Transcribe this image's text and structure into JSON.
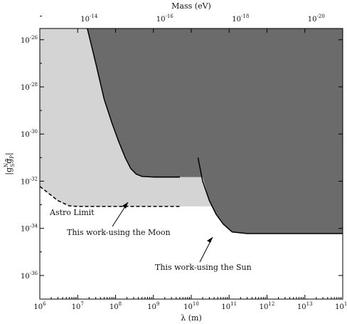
{
  "chart_data": {
    "type": "area",
    "x_axis": {
      "label": "λ (m)",
      "scale": "log",
      "range": [
        1000000,
        100000000000000
      ],
      "ticks": [
        {
          "value": 1000000,
          "base": "10",
          "exp": "6"
        },
        {
          "value": 10000000,
          "base": "10",
          "exp": "7"
        },
        {
          "value": 100000000,
          "base": "10",
          "exp": "8"
        },
        {
          "value": 1000000000,
          "base": "10",
          "exp": "9"
        },
        {
          "value": 10000000000,
          "base": "10",
          "exp": "10"
        },
        {
          "value": 100000000000,
          "base": "10",
          "exp": "11"
        },
        {
          "value": 1000000000000,
          "base": "10",
          "exp": "12"
        },
        {
          "value": 10000000000000,
          "base": "10",
          "exp": "13"
        },
        {
          "value": 100000000000000,
          "base": "10",
          "exp": "14"
        }
      ]
    },
    "top_axis": {
      "label": "Mass (eV)",
      "scale": "log",
      "ticks": [
        {
          "at_lambda_m": 20000000,
          "base": "10",
          "exp": "-14"
        },
        {
          "at_lambda_m": 2000000000,
          "base": "10",
          "exp": "-16"
        },
        {
          "at_lambda_m": 200000000000,
          "base": "10",
          "exp": "-18"
        },
        {
          "at_lambda_m": 20000000000000,
          "base": "10",
          "exp": "-20"
        }
      ]
    },
    "y_axis": {
      "label_base": "|g",
      "label_sup": "N,n",
      "label_sub": "S",
      "label_base2": "g",
      "label_sub2": "P",
      "label_end": "|",
      "scale": "log",
      "range": [
        1e-37,
        3e-26
      ],
      "ticks": [
        {
          "value": 1e-26,
          "base": "10",
          "exp": "-26"
        },
        {
          "value": 1e-28,
          "base": "10",
          "exp": "-28"
        },
        {
          "value": 1e-30,
          "base": "10",
          "exp": "-30"
        },
        {
          "value": 1e-32,
          "base": "10",
          "exp": "-32"
        },
        {
          "value": 1e-34,
          "base": "10",
          "exp": "-34"
        },
        {
          "value": 1e-36,
          "base": "10",
          "exp": "-36"
        }
      ]
    },
    "series": [
      {
        "name": "Astro Limit",
        "style": "dashed",
        "points": [
          [
            1000000,
            6e-33
          ],
          [
            3000000,
            1.5e-33
          ],
          [
            6000000,
            9e-34
          ],
          [
            10000000,
            8.5e-34
          ],
          [
            5000000000,
            8.5e-34
          ]
        ]
      },
      {
        "name": "This work-using the Moon",
        "style": "solid",
        "points": [
          [
            18000000,
            3e-26
          ],
          [
            30000000,
            1e-27
          ],
          [
            50000000,
            3e-29
          ],
          [
            80000000,
            3e-30
          ],
          [
            120000000,
            5e-31
          ],
          [
            180000000,
            1e-31
          ],
          [
            250000000,
            3.5e-32
          ],
          [
            350000000,
            2e-32
          ],
          [
            500000000,
            1.6e-32
          ],
          [
            1000000000,
            1.5e-32
          ],
          [
            5000000000,
            1.5e-32
          ]
        ]
      },
      {
        "name": "This work-using the Sun",
        "style": "solid",
        "points": [
          [
            15000000000,
            1e-31
          ],
          [
            20000000000,
            1e-32
          ],
          [
            30000000000,
            1.5e-33
          ],
          [
            45000000000,
            4e-34
          ],
          [
            70000000000,
            1.5e-34
          ],
          [
            120000000000,
            7e-35
          ],
          [
            300000000000,
            6e-35
          ],
          [
            100000000000000,
            6e-35
          ]
        ]
      }
    ],
    "shaded_regions": [
      {
        "color": "#d4d4d4",
        "description_of": "Astro Limit"
      },
      {
        "color": "#6b6b6b",
        "description_of": "This work"
      }
    ],
    "annotations": [
      {
        "text": "Astro Limit"
      },
      {
        "text": "This work-using the Moon"
      },
      {
        "text": "This work-using the Sun"
      }
    ]
  }
}
